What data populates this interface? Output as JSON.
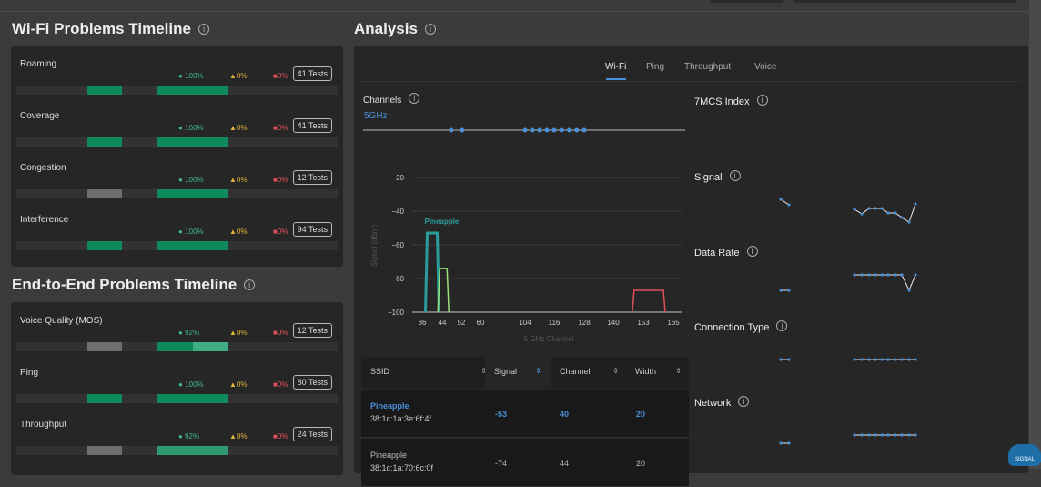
{
  "wifi_section": {
    "title": "Wi-Fi Problems Timeline",
    "rows": [
      {
        "label": "Roaming",
        "ok": "100%",
        "warn": "0%",
        "err": "0%",
        "tests": "41 Tests",
        "segments": [
          {
            "from": 0.22,
            "to": 0.33,
            "color": "#0f8a5c"
          },
          {
            "from": 0.44,
            "to": 0.66,
            "color": "#0f8a5c"
          }
        ]
      },
      {
        "label": "Coverage",
        "ok": "100%",
        "warn": "0%",
        "err": "0%",
        "tests": "41 Tests",
        "segments": [
          {
            "from": 0.22,
            "to": 0.33,
            "color": "#0f8a5c"
          },
          {
            "from": 0.44,
            "to": 0.66,
            "color": "#0f8a5c"
          }
        ]
      },
      {
        "label": "Congestion",
        "ok": "100%",
        "warn": "0%",
        "err": "0%",
        "tests": "12 Tests",
        "segments": [
          {
            "from": 0.22,
            "to": 0.33,
            "color": "#6e6e6e"
          },
          {
            "from": 0.44,
            "to": 0.66,
            "color": "#0f8a5c"
          }
        ]
      },
      {
        "label": "Interference",
        "ok": "100%",
        "warn": "0%",
        "err": "0%",
        "tests": "94 Tests",
        "segments": [
          {
            "from": 0.22,
            "to": 0.33,
            "color": "#0f8a5c"
          },
          {
            "from": 0.44,
            "to": 0.66,
            "color": "#0f8a5c"
          }
        ]
      }
    ]
  },
  "e2e_section": {
    "title": "End-to-End Problems Timeline",
    "rows": [
      {
        "label": "Voice Quality (MOS)",
        "ok": "92%",
        "warn": "8%",
        "err": "0%",
        "tests": "12 Tests",
        "segments": [
          {
            "from": 0.22,
            "to": 0.33,
            "color": "#6e6e6e"
          },
          {
            "from": 0.44,
            "to": 0.55,
            "color": "#0f8a5c"
          },
          {
            "from": 0.55,
            "to": 0.66,
            "color": "#3fae84"
          }
        ]
      },
      {
        "label": "Ping",
        "ok": "100%",
        "warn": "0%",
        "err": "0%",
        "tests": "80 Tests",
        "segments": [
          {
            "from": 0.22,
            "to": 0.33,
            "color": "#0f8a5c"
          },
          {
            "from": 0.44,
            "to": 0.66,
            "color": "#0f8a5c"
          }
        ]
      },
      {
        "label": "Throughput",
        "ok": "92%",
        "warn": "8%",
        "err": "0%",
        "tests": "24 Tests",
        "segments": [
          {
            "from": 0.22,
            "to": 0.33,
            "color": "#6e6e6e"
          },
          {
            "from": 0.44,
            "to": 0.66,
            "color": "#2f9a72"
          }
        ]
      }
    ]
  },
  "analysis": {
    "title": "Analysis",
    "tabs": [
      "Wi-Fi",
      "Ping",
      "Throughput",
      "Voice"
    ],
    "active_tab": "Wi-Fi",
    "channels_label": "Channels",
    "band": "5GHz",
    "right_sections": [
      "7MCS Index",
      "Signal",
      "Data Rate",
      "Connection Type",
      "Network"
    ]
  },
  "chart_data": {
    "type": "area",
    "xlabel": "5 GHz Channel",
    "ylabel": "Signal (dBm)",
    "ylim": [
      -100,
      -10
    ],
    "yticks": [
      -20,
      -40,
      -60,
      -80,
      -100
    ],
    "xticks": [
      36,
      44,
      52,
      60,
      104,
      116,
      128,
      140,
      153,
      165
    ],
    "series": [
      {
        "name": "Pineapple",
        "channels": [
          38,
          42
        ],
        "signal": -53,
        "color": "#2a9d9b"
      },
      {
        "channels": [
          43,
          46
        ],
        "signal": -74,
        "color": "#9be27a"
      },
      {
        "channels": [
          149,
          161
        ],
        "signal": -87,
        "color": "#e0505a"
      }
    ]
  },
  "table": {
    "columns": [
      "SSID",
      "Signal",
      "Channel",
      "Width"
    ],
    "rows": [
      {
        "ssid": "Pineapple",
        "bssid": "38:1c:1a:3e:6f:4f",
        "signal": "-53",
        "channel": "40",
        "width": "20",
        "highlight": true
      },
      {
        "ssid": "Pineapple",
        "bssid": "38:1c:1a:70:6c:0f",
        "signal": "-74",
        "channel": "44",
        "width": "20",
        "highlight": false
      }
    ]
  },
  "colors": {
    "ok": "#3fb98a",
    "warn": "#e3b43a",
    "err": "#e0505a",
    "accent": "#4a90d9"
  },
  "logo": "7SIGNAL"
}
